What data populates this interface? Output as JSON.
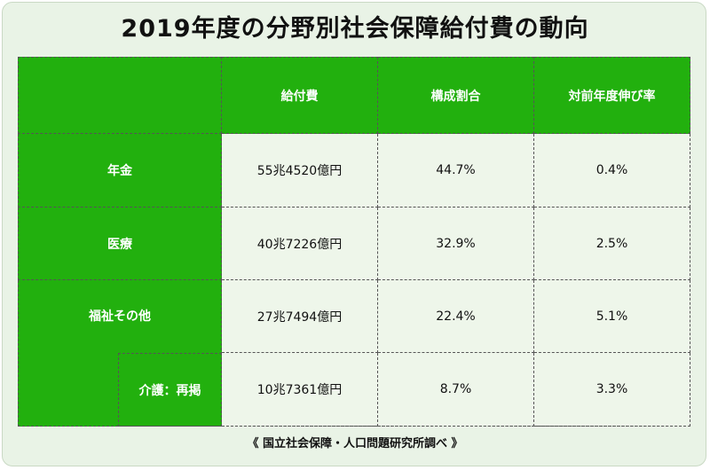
{
  "title": "2019年度の分野別社会保障給付費の動向",
  "table": {
    "headers": [
      "給付費",
      "構成割合",
      "対前年度伸び率"
    ],
    "rows": [
      {
        "label": "年金",
        "amount": "55兆4520億円",
        "share": "44.7%",
        "growth": "0.4%"
      },
      {
        "label": "医療",
        "amount": "40兆7226億円",
        "share": "32.9%",
        "growth": "2.5%"
      },
      {
        "label": "福祉その他",
        "amount": "27兆7494億円",
        "share": "22.4%",
        "growth": "5.1%"
      },
      {
        "label": "介護：再掲",
        "amount": "10兆7361億円",
        "share": "8.7%",
        "growth": "3.3%"
      }
    ]
  },
  "source": "《 国立社会保障・人口問題研究所調べ 》",
  "colors": {
    "header_green": "#22b00e",
    "background": "#e9f3e6",
    "cell": "#eef6ea"
  }
}
